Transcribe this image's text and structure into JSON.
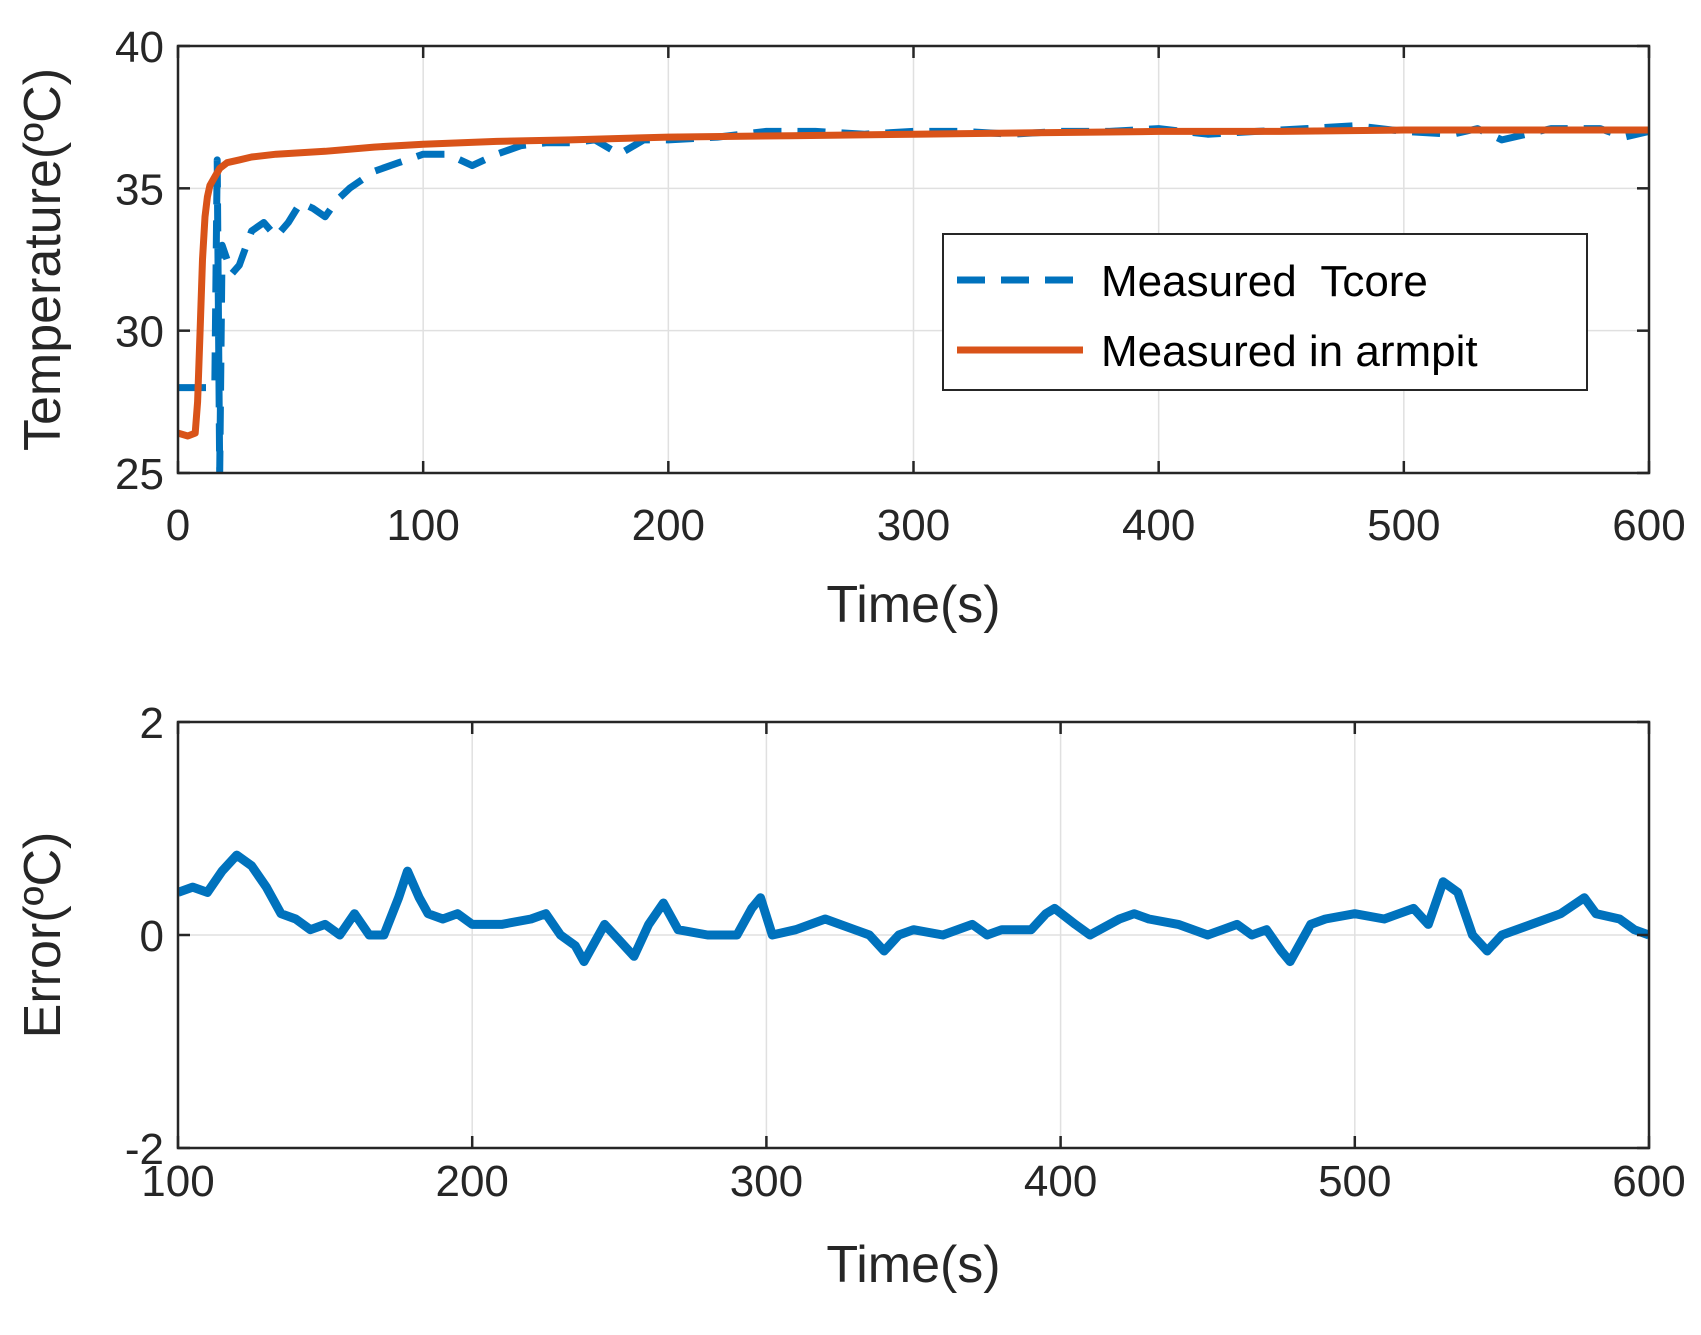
{
  "chart_data": [
    {
      "type": "line",
      "xlabel": "Time(s)",
      "ylabel": "Temperature(ºC)",
      "xlim": [
        0,
        600
      ],
      "ylim": [
        25,
        40
      ],
      "xticks": [
        "0",
        "100",
        "200",
        "300",
        "400",
        "500",
        "600"
      ],
      "yticks": [
        "25",
        "30",
        "35",
        "40"
      ],
      "grid": true,
      "legend_position": "center-right",
      "series": [
        {
          "name": "Measured  Tcore",
          "style": "dashed",
          "color": "#0072BD",
          "x": [
            0,
            5,
            10,
            12,
            15,
            16,
            17,
            18,
            20,
            22,
            25,
            30,
            35,
            40,
            45,
            50,
            55,
            60,
            65,
            70,
            80,
            90,
            100,
            110,
            120,
            130,
            140,
            150,
            160,
            170,
            180,
            190,
            200,
            220,
            240,
            260,
            280,
            300,
            320,
            340,
            360,
            380,
            400,
            420,
            440,
            460,
            480,
            500,
            520,
            530,
            540,
            560,
            580,
            590,
            600
          ],
          "y": [
            28,
            28,
            28,
            28,
            28,
            36,
            25,
            33,
            32.5,
            32,
            32.3,
            33.5,
            33.8,
            33.3,
            33.8,
            34.5,
            34.3,
            34,
            34.6,
            35,
            35.6,
            35.9,
            36.2,
            36.2,
            35.8,
            36.2,
            36.5,
            36.6,
            36.6,
            36.7,
            36.2,
            36.7,
            36.7,
            36.8,
            37,
            37,
            36.9,
            37,
            37,
            36.9,
            37,
            37,
            37.1,
            36.9,
            37,
            37.1,
            37.2,
            37,
            36.9,
            37.1,
            36.7,
            37.1,
            37.1,
            36.8,
            37
          ]
        },
        {
          "name": "Measured in armpit",
          "style": "solid",
          "color": "#D95319",
          "x": [
            0,
            4,
            7,
            8,
            9,
            10,
            11,
            12,
            13,
            15,
            17,
            20,
            25,
            30,
            40,
            60,
            80,
            100,
            130,
            160,
            200,
            250,
            300,
            350,
            400,
            450,
            500,
            550,
            600
          ],
          "y": [
            26.4,
            26.3,
            26.4,
            27.5,
            30,
            32.5,
            34,
            34.7,
            35.1,
            35.4,
            35.7,
            35.9,
            36.0,
            36.1,
            36.2,
            36.3,
            36.45,
            36.55,
            36.65,
            36.7,
            36.8,
            36.85,
            36.9,
            36.95,
            37.0,
            37.0,
            37.05,
            37.05,
            37.05
          ]
        }
      ]
    },
    {
      "type": "line",
      "xlabel": "Time(s)",
      "ylabel": "Error(ºC)",
      "xlim": [
        100,
        600
      ],
      "ylim": [
        -2,
        2
      ],
      "xticks": [
        "100",
        "200",
        "300",
        "400",
        "500",
        "600"
      ],
      "yticks": [
        "-2",
        "0",
        "2"
      ],
      "grid": true,
      "series": [
        {
          "name": "Error",
          "style": "solid",
          "color": "#0072BD",
          "x": [
            100,
            105,
            110,
            115,
            120,
            125,
            130,
            135,
            140,
            145,
            150,
            155,
            160,
            165,
            170,
            175,
            178,
            182,
            185,
            190,
            195,
            200,
            210,
            220,
            225,
            230,
            235,
            238,
            245,
            250,
            255,
            260,
            265,
            270,
            280,
            290,
            295,
            298,
            302,
            310,
            320,
            330,
            335,
            340,
            345,
            350,
            360,
            370,
            375,
            380,
            390,
            395,
            398,
            405,
            410,
            420,
            425,
            430,
            440,
            450,
            455,
            460,
            465,
            470,
            475,
            478,
            485,
            490,
            500,
            510,
            520,
            525,
            530,
            535,
            540,
            545,
            550,
            560,
            570,
            578,
            582,
            590,
            595,
            600
          ],
          "y": [
            0.4,
            0.45,
            0.4,
            0.6,
            0.75,
            0.65,
            0.45,
            0.2,
            0.15,
            0.05,
            0.1,
            0.0,
            0.2,
            0.0,
            0.0,
            0.35,
            0.6,
            0.35,
            0.2,
            0.15,
            0.2,
            0.1,
            0.1,
            0.15,
            0.2,
            0.0,
            -0.1,
            -0.25,
            0.1,
            -0.05,
            -0.2,
            0.1,
            0.3,
            0.05,
            0.0,
            0.0,
            0.25,
            0.35,
            0.0,
            0.05,
            0.15,
            0.05,
            0.0,
            -0.15,
            0.0,
            0.05,
            0.0,
            0.1,
            0.0,
            0.05,
            0.05,
            0.2,
            0.25,
            0.1,
            0.0,
            0.15,
            0.2,
            0.15,
            0.1,
            0.0,
            0.05,
            0.1,
            0.0,
            0.05,
            -0.15,
            -0.25,
            0.1,
            0.15,
            0.2,
            0.15,
            0.25,
            0.1,
            0.5,
            0.4,
            0.0,
            -0.15,
            0.0,
            0.1,
            0.2,
            0.35,
            0.2,
            0.15,
            0.05,
            0.0
          ]
        }
      ]
    }
  ]
}
